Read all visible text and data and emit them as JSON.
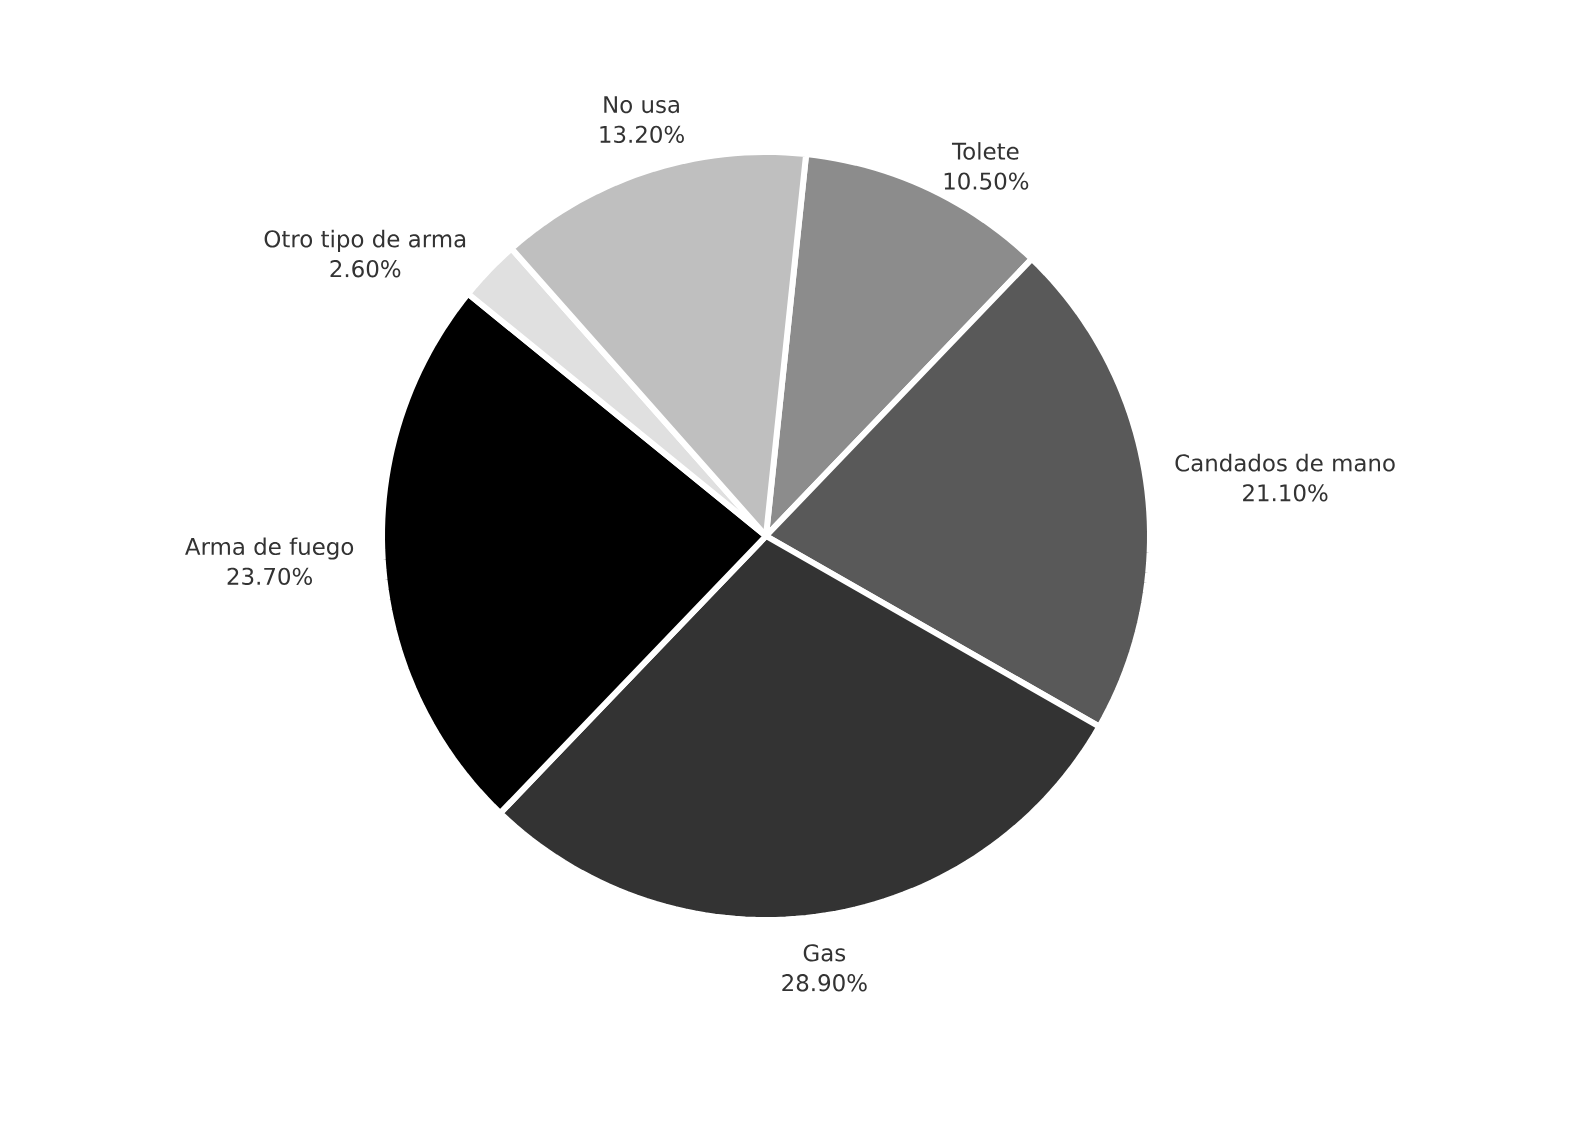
{
  "chart_data": {
    "type": "pie",
    "categories": [
      "Tolete",
      "Candados de mano",
      "Gas",
      "Arma de fuego",
      "Otro tipo de arma",
      "No usa"
    ],
    "values": [
      10.5,
      21.1,
      28.9,
      23.7,
      2.6,
      13.2
    ],
    "value_labels": [
      "10.50%",
      "21.10%",
      "28.90%",
      "23.70%",
      "2.60%",
      "13.20%"
    ],
    "colors": [
      "#8c8c8c",
      "#595959",
      "#333333",
      "#000000",
      "#e0e0e0",
      "#bfbfbf"
    ]
  }
}
